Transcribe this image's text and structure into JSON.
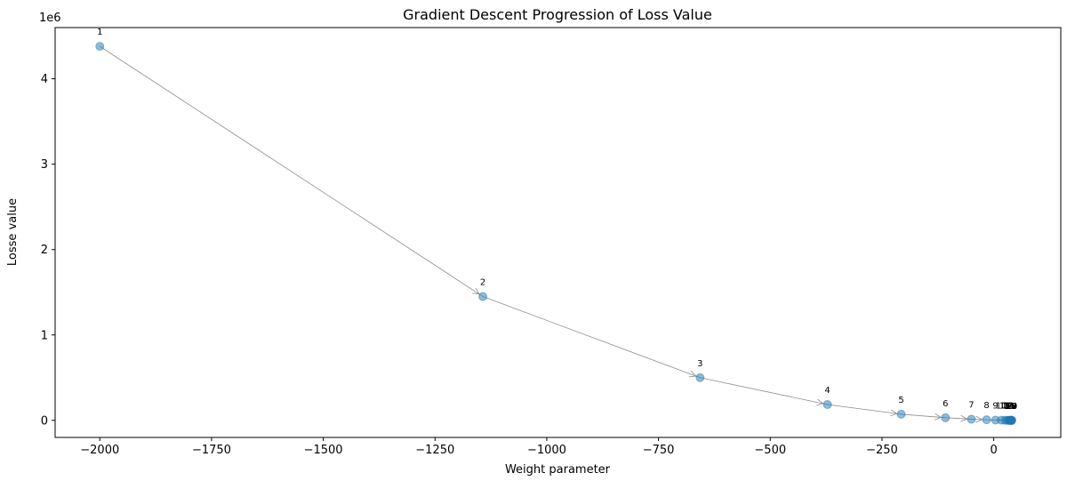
{
  "chart_data": {
    "type": "scatter",
    "title": "Gradient Descent Progression of Loss Value",
    "xlabel": "Weight parameter",
    "ylabel": "Losse value",
    "y_offset_label": "1e6",
    "xlim": [
      -2100,
      150
    ],
    "ylim": [
      -200000,
      4600000
    ],
    "xticks": [
      -2000,
      -1750,
      -1500,
      -1250,
      -1000,
      -750,
      -500,
      -250,
      0
    ],
    "xtick_labels": [
      "−2000",
      "−1750",
      "−1500",
      "−1250",
      "−1000",
      "−750",
      "−500",
      "−250",
      "0"
    ],
    "yticks": [
      0,
      1000000,
      2000000,
      3000000,
      4000000
    ],
    "ytick_labels": [
      "0",
      "1",
      "2",
      "3",
      "4"
    ],
    "grid": false,
    "series": [
      {
        "points": [
          {
            "label": "1",
            "x": -2000,
            "y": 4380000
          },
          {
            "label": "2",
            "x": -1143,
            "y": 1450000
          },
          {
            "label": "3",
            "x": -657,
            "y": 500000
          },
          {
            "label": "4",
            "x": -372,
            "y": 185000
          },
          {
            "label": "5",
            "x": -207,
            "y": 72000
          },
          {
            "label": "6",
            "x": -108,
            "y": 31000
          },
          {
            "label": "7",
            "x": -50,
            "y": 14000
          },
          {
            "label": "8",
            "x": -16,
            "y": 7000
          },
          {
            "label": "9",
            "x": 4,
            "y": 3500
          },
          {
            "label": "10",
            "x": 17,
            "y": 2000
          },
          {
            "label": "11",
            "x": 25,
            "y": 1200
          },
          {
            "label": "12",
            "x": 30,
            "y": 800
          },
          {
            "label": "13",
            "x": 33,
            "y": 500
          },
          {
            "label": "14",
            "x": 35,
            "y": 300
          },
          {
            "label": "15",
            "x": 37,
            "y": 200
          },
          {
            "label": "16",
            "x": 38,
            "y": 150
          },
          {
            "label": "17",
            "x": 39,
            "y": 100
          },
          {
            "label": "18",
            "x": 39.5,
            "y": 80
          },
          {
            "label": "19",
            "x": 40,
            "y": 60
          },
          {
            "label": "20",
            "x": 40.3,
            "y": 50
          }
        ]
      }
    ]
  }
}
